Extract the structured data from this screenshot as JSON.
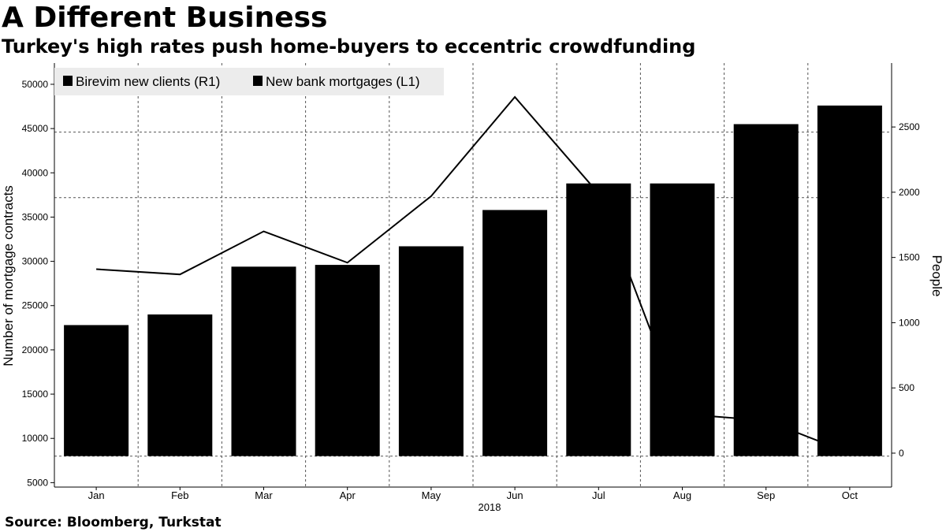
{
  "header": {
    "title": "A Different Business",
    "subtitle": "Turkey's high rates push home-buyers to eccentric crowdfunding"
  },
  "footer": {
    "source": "Source: Bloomberg, Turkstat"
  },
  "chart_data": {
    "type": "bar",
    "categories": [
      "Jan",
      "Feb",
      "Mar",
      "Apr",
      "May",
      "Jun",
      "Jul",
      "Aug",
      "Sep",
      "Oct"
    ],
    "xlabel_year": "2018",
    "series": [
      {
        "name": "New bank mortgages (L1)",
        "type": "bar",
        "axis": "left",
        "color": "#000000",
        "values": [
          22800,
          24000,
          29400,
          29600,
          31700,
          35800,
          38800,
          38800,
          45500,
          47600
        ]
      },
      {
        "name": "Birevim new clients (R1)",
        "type": "line",
        "axis": "right",
        "color": "#000000",
        "values": [
          1410,
          1370,
          1700,
          1460,
          1970,
          2730,
          1990,
          300,
          250,
          0
        ]
      }
    ],
    "legend": {
      "placement": "top-left",
      "order": [
        "Birevim new clients (R1)",
        "New bank mortgages (L1)"
      ]
    },
    "y_left": {
      "label": "Number of mortgage contracts",
      "range": [
        4500,
        52400
      ],
      "bar_base": 8000,
      "ticks": [
        5000,
        10000,
        15000,
        20000,
        25000,
        30000,
        35000,
        40000,
        45000,
        50000
      ],
      "gridlines": [
        8000,
        37200,
        44600
      ]
    },
    "y_right": {
      "label": "People",
      "range": [
        -260,
        2990
      ],
      "ticks": [
        0,
        500,
        1000,
        1500,
        2000,
        2500
      ]
    },
    "grid": true
  }
}
